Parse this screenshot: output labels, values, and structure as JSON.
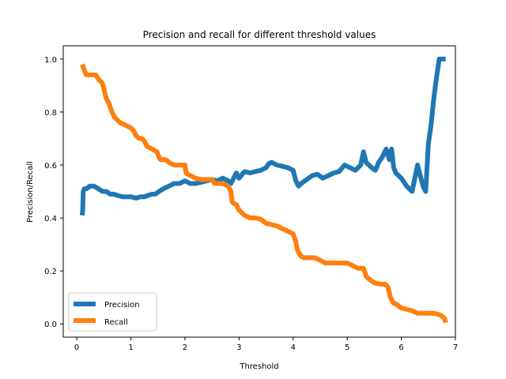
{
  "chart_data": {
    "type": "line",
    "title": "Precision and recall for different threshold values",
    "xlabel": "Threshold",
    "ylabel": "Precision/Recall",
    "xlim": [
      -0.25,
      7.0
    ],
    "ylim": [
      -0.05,
      1.05
    ],
    "xticks": [
      0,
      1,
      2,
      3,
      4,
      5,
      6,
      7
    ],
    "yticks": [
      0.0,
      0.2,
      0.4,
      0.6,
      0.8,
      1.0
    ],
    "xtick_labels": [
      "0",
      "1",
      "2",
      "3",
      "4",
      "5",
      "6",
      "7"
    ],
    "ytick_labels": [
      "0.0",
      "0.2",
      "0.4",
      "0.6",
      "0.8",
      "1.0"
    ],
    "grid": false,
    "legend_position": "lower-left",
    "series": [
      {
        "name": "Precision",
        "color": "#1f77b4",
        "x": [
          0.1,
          0.11,
          0.12,
          0.14,
          0.18,
          0.24,
          0.32,
          0.4,
          0.48,
          0.55,
          0.62,
          0.68,
          0.75,
          0.85,
          1.0,
          1.1,
          1.18,
          1.25,
          1.32,
          1.38,
          1.45,
          1.52,
          1.6,
          1.7,
          1.8,
          1.9,
          2.0,
          2.1,
          2.2,
          2.3,
          2.4,
          2.5,
          2.6,
          2.7,
          2.8,
          2.85,
          2.9,
          2.95,
          3.0,
          3.1,
          3.2,
          3.3,
          3.4,
          3.5,
          3.55,
          3.6,
          3.7,
          3.8,
          3.9,
          4.0,
          4.05,
          4.1,
          4.15,
          4.25,
          4.35,
          4.45,
          4.55,
          4.65,
          4.75,
          4.85,
          4.95,
          5.05,
          5.15,
          5.25,
          5.3,
          5.35,
          5.45,
          5.52,
          5.58,
          5.65,
          5.72,
          5.78,
          5.82,
          5.86,
          5.9,
          6.0,
          6.1,
          6.2,
          6.3,
          6.4,
          6.45,
          6.5,
          6.55,
          6.6,
          6.65,
          6.7,
          6.75,
          6.82
        ],
        "y": [
          0.41,
          0.43,
          0.5,
          0.51,
          0.51,
          0.52,
          0.52,
          0.51,
          0.5,
          0.5,
          0.49,
          0.49,
          0.485,
          0.48,
          0.48,
          0.475,
          0.48,
          0.48,
          0.485,
          0.49,
          0.49,
          0.5,
          0.51,
          0.52,
          0.53,
          0.53,
          0.54,
          0.53,
          0.53,
          0.535,
          0.54,
          0.545,
          0.54,
          0.55,
          0.54,
          0.53,
          0.55,
          0.57,
          0.55,
          0.575,
          0.57,
          0.575,
          0.58,
          0.59,
          0.605,
          0.61,
          0.6,
          0.595,
          0.59,
          0.58,
          0.54,
          0.52,
          0.53,
          0.545,
          0.56,
          0.565,
          0.55,
          0.56,
          0.57,
          0.575,
          0.6,
          0.59,
          0.58,
          0.6,
          0.65,
          0.61,
          0.59,
          0.58,
          0.61,
          0.63,
          0.66,
          0.62,
          0.66,
          0.59,
          0.57,
          0.55,
          0.52,
          0.5,
          0.6,
          0.52,
          0.5,
          0.68,
          0.75,
          0.85,
          0.93,
          1.0,
          1.0,
          1.0
        ]
      },
      {
        "name": "Recall",
        "color": "#ff7f0e",
        "x": [
          0.1,
          0.12,
          0.15,
          0.18,
          0.25,
          0.35,
          0.42,
          0.47,
          0.5,
          0.52,
          0.55,
          0.6,
          0.65,
          0.7,
          0.8,
          0.9,
          1.0,
          1.05,
          1.1,
          1.15,
          1.2,
          1.25,
          1.3,
          1.4,
          1.48,
          1.52,
          1.55,
          1.6,
          1.65,
          1.7,
          1.8,
          1.9,
          2.0,
          2.02,
          2.05,
          2.1,
          2.2,
          2.3,
          2.4,
          2.5,
          2.55,
          2.6,
          2.7,
          2.8,
          2.85,
          2.87,
          2.9,
          2.95,
          3.0,
          3.05,
          3.1,
          3.2,
          3.3,
          3.4,
          3.5,
          3.6,
          3.7,
          3.8,
          3.9,
          4.0,
          4.05,
          4.08,
          4.1,
          4.15,
          4.2,
          4.3,
          4.4,
          4.5,
          4.6,
          4.7,
          4.8,
          4.9,
          5.0,
          5.1,
          5.2,
          5.3,
          5.35,
          5.4,
          5.5,
          5.6,
          5.7,
          5.75,
          5.8,
          5.85,
          5.9,
          6.0,
          6.1,
          6.2,
          6.3,
          6.4,
          6.5,
          6.6,
          6.7,
          6.75,
          6.8,
          6.82
        ],
        "y": [
          0.98,
          0.97,
          0.95,
          0.94,
          0.94,
          0.94,
          0.92,
          0.91,
          0.89,
          0.87,
          0.85,
          0.83,
          0.8,
          0.78,
          0.76,
          0.75,
          0.74,
          0.73,
          0.71,
          0.7,
          0.7,
          0.69,
          0.67,
          0.66,
          0.65,
          0.63,
          0.62,
          0.62,
          0.62,
          0.61,
          0.6,
          0.6,
          0.6,
          0.57,
          0.565,
          0.56,
          0.55,
          0.545,
          0.545,
          0.545,
          0.53,
          0.53,
          0.53,
          0.52,
          0.5,
          0.46,
          0.455,
          0.45,
          0.43,
          0.42,
          0.41,
          0.4,
          0.4,
          0.395,
          0.38,
          0.375,
          0.37,
          0.36,
          0.35,
          0.34,
          0.31,
          0.28,
          0.27,
          0.255,
          0.25,
          0.25,
          0.25,
          0.24,
          0.23,
          0.23,
          0.23,
          0.23,
          0.23,
          0.22,
          0.21,
          0.21,
          0.18,
          0.17,
          0.155,
          0.15,
          0.15,
          0.14,
          0.1,
          0.08,
          0.075,
          0.06,
          0.055,
          0.05,
          0.04,
          0.04,
          0.04,
          0.04,
          0.035,
          0.03,
          0.02,
          0.005
        ]
      }
    ]
  }
}
